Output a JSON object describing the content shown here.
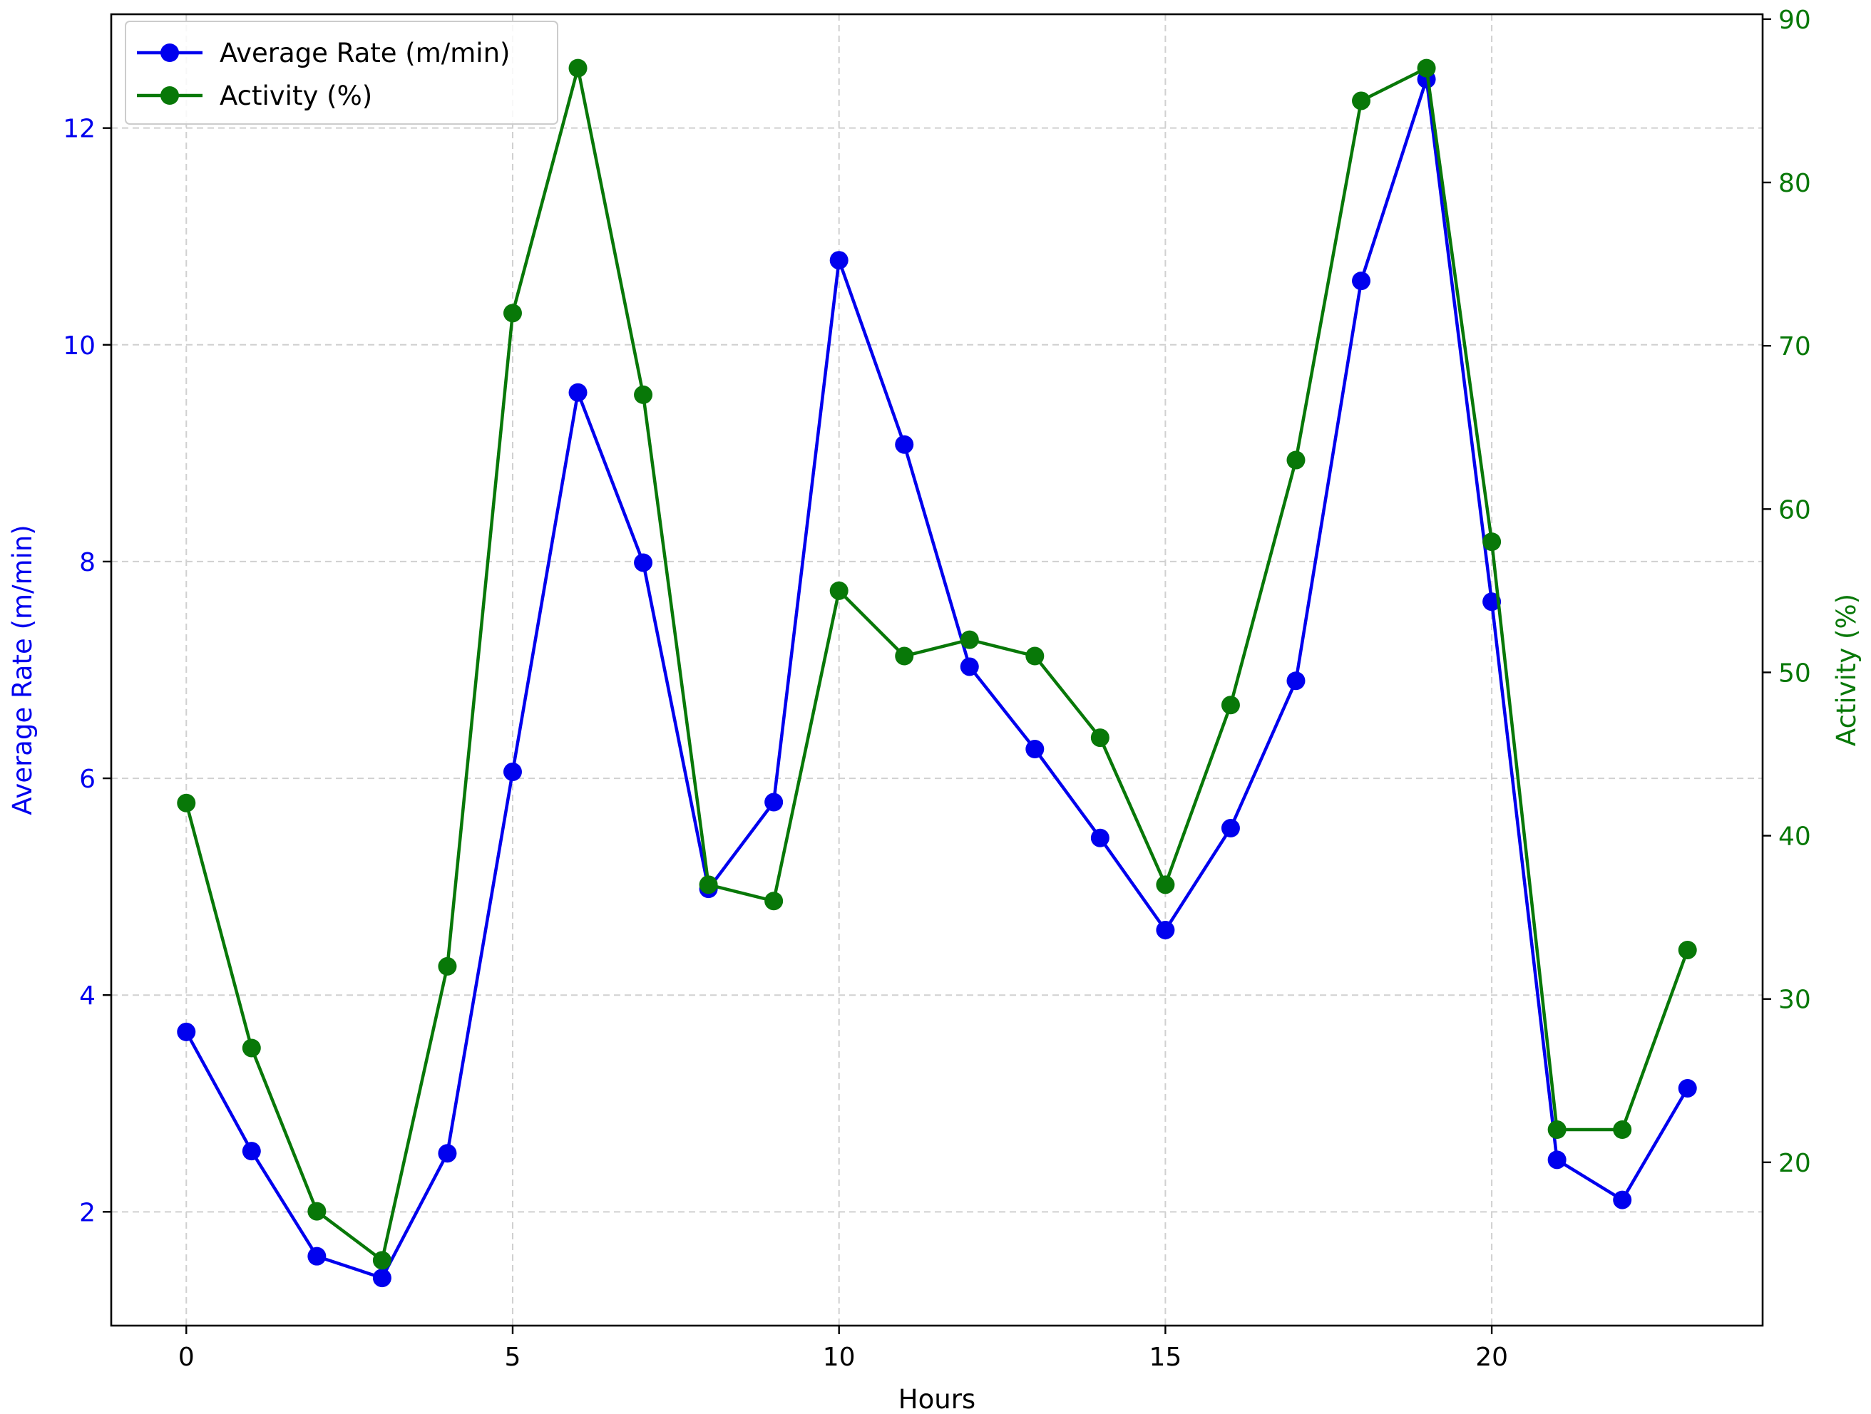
{
  "chart_data": {
    "type": "line",
    "xlabel": "Hours",
    "ylabel_left": "Average Rate (m/min)",
    "ylabel_right": "Activity (%)",
    "x": [
      0,
      1,
      2,
      3,
      4,
      5,
      6,
      7,
      8,
      9,
      10,
      11,
      12,
      13,
      14,
      15,
      16,
      17,
      18,
      19,
      20,
      21,
      22,
      23
    ],
    "xlim": [
      -1.15,
      24.15
    ],
    "ylim_left": [
      0.95,
      13.05
    ],
    "ylim_right": [
      10.0,
      90.3
    ],
    "x_ticks": [
      0,
      5,
      10,
      15,
      20
    ],
    "y_left_ticks": [
      2,
      4,
      6,
      8,
      10,
      12
    ],
    "y_right_ticks": [
      20,
      30,
      40,
      50,
      60,
      70,
      80,
      90
    ],
    "grid": true,
    "legend_position": "upper left",
    "series": [
      {
        "name": "Average Rate (m/min)",
        "axis": "left",
        "color": "#0000ee",
        "marker": "circle",
        "values": [
          3.66,
          2.56,
          1.59,
          1.39,
          2.54,
          6.06,
          9.56,
          7.99,
          4.98,
          5.78,
          10.78,
          9.08,
          7.03,
          6.27,
          5.45,
          4.6,
          5.54,
          6.9,
          10.59,
          12.45,
          7.63,
          2.48,
          2.11,
          3.14
        ]
      },
      {
        "name": "Activity (%)",
        "axis": "right",
        "color": "#087808",
        "marker": "circle",
        "values": [
          42,
          27,
          17,
          14,
          32,
          72,
          87,
          67,
          37,
          36,
          55,
          51,
          52,
          51,
          46,
          37,
          48,
          63,
          85,
          87,
          58,
          22,
          22,
          33
        ]
      }
    ]
  }
}
